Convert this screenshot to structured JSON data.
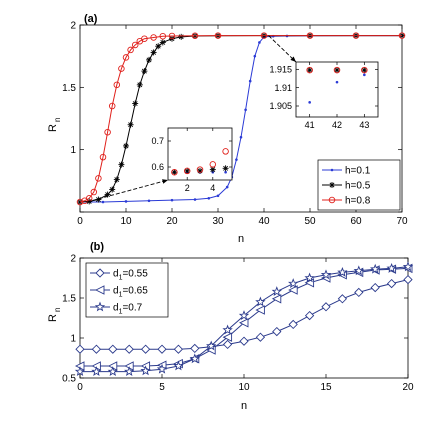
{
  "chart_data": [
    {
      "panel_label": "(a)",
      "type": "line",
      "xlabel": "n",
      "ylabel": "R",
      "ylabel_subscript": "n",
      "xlim": [
        0,
        70
      ],
      "ylim": [
        0.5,
        2.0
      ],
      "xticks": [
        0,
        10,
        20,
        30,
        40,
        50,
        60,
        70
      ],
      "yticks": [
        0.5,
        1,
        1.5,
        2
      ],
      "ytick_labels": [
        "",
        "1",
        "1.5",
        "2"
      ],
      "legend_position": "lower-right",
      "series": [
        {
          "name": "h=0.1",
          "color": "#2b3bd6",
          "marker": "dot",
          "x": [
            0,
            5,
            10,
            15,
            20,
            25,
            28,
            30,
            32,
            33,
            34,
            35,
            36,
            37,
            38,
            39,
            40,
            42,
            45,
            50,
            60,
            70
          ],
          "y": [
            0.58,
            0.58,
            0.585,
            0.59,
            0.595,
            0.6,
            0.61,
            0.63,
            0.7,
            0.78,
            0.92,
            1.1,
            1.32,
            1.55,
            1.75,
            1.86,
            1.905,
            1.91,
            1.912,
            1.914,
            1.915,
            1.915
          ]
        },
        {
          "name": "h=0.5",
          "color": "#000000",
          "marker": "asterisk",
          "x": [
            0,
            2,
            4,
            6,
            7,
            8,
            9,
            10,
            11,
            12,
            13,
            14,
            15,
            16,
            17,
            18,
            20,
            22,
            25,
            30,
            40,
            50,
            60,
            70
          ],
          "y": [
            0.58,
            0.585,
            0.6,
            0.64,
            0.68,
            0.76,
            0.88,
            1.03,
            1.2,
            1.37,
            1.52,
            1.63,
            1.72,
            1.78,
            1.83,
            1.86,
            1.89,
            1.905,
            1.912,
            1.914,
            1.915,
            1.915,
            1.915,
            1.915
          ]
        },
        {
          "name": "h=0.8",
          "color": "#e0211c",
          "marker": "circle",
          "x": [
            0,
            1,
            2,
            3,
            4,
            5,
            6,
            7,
            8,
            9,
            10,
            11,
            12,
            13,
            14,
            16,
            18,
            20,
            25,
            30,
            40,
            50,
            60,
            70
          ],
          "y": [
            0.58,
            0.59,
            0.61,
            0.66,
            0.77,
            0.94,
            1.14,
            1.35,
            1.52,
            1.65,
            1.74,
            1.8,
            1.84,
            1.87,
            1.89,
            1.9,
            1.91,
            1.912,
            1.914,
            1.915,
            1.915,
            1.915,
            1.915,
            1.915
          ]
        }
      ],
      "insets": [
        {
          "xlim": [
            0.5,
            5.5
          ],
          "ylim": [
            0.55,
            0.75
          ],
          "xticks": [
            2,
            4
          ],
          "yticks": [
            0.6,
            0.7
          ],
          "series": [
            {
              "name": "h=0.1",
              "color": "#2b3bd6",
              "marker": "dot",
              "x": [
                1,
                2,
                3,
                4,
                5
              ],
              "y": [
                0.58,
                0.58,
                0.58,
                0.58,
                0.58
              ]
            },
            {
              "name": "h=0.5",
              "color": "#000000",
              "marker": "asterisk",
              "x": [
                1,
                2,
                3,
                4,
                5
              ],
              "y": [
                0.58,
                0.585,
                0.585,
                0.59,
                0.595
              ]
            },
            {
              "name": "h=0.8",
              "color": "#e0211c",
              "marker": "circle",
              "x": [
                1,
                2,
                3,
                4,
                5
              ],
              "y": [
                0.58,
                0.585,
                0.59,
                0.61,
                0.66
              ]
            }
          ]
        },
        {
          "xlim": [
            40.5,
            43.5
          ],
          "ylim": [
            1.902,
            1.917
          ],
          "xticks": [
            41,
            42,
            43
          ],
          "yticks": [
            1.905,
            1.91,
            1.915
          ],
          "series": [
            {
              "name": "h=0.1",
              "color": "#2b3bd6",
              "marker": "dot",
              "x": [
                41,
                42,
                43
              ],
              "y": [
                1.906,
                1.9115,
                1.9135
              ]
            },
            {
              "name": "h=0.5",
              "color": "#000000",
              "marker": "asterisk",
              "x": [
                41,
                42,
                43
              ],
              "y": [
                1.9148,
                1.9148,
                1.9148
              ]
            },
            {
              "name": "h=0.8",
              "color": "#e0211c",
              "marker": "circle",
              "x": [
                41,
                42,
                43
              ],
              "y": [
                1.9148,
                1.9148,
                1.9148
              ]
            }
          ]
        }
      ]
    },
    {
      "panel_label": "(b)",
      "type": "line",
      "xlabel": "n",
      "ylabel": "R",
      "ylabel_subscript": "n",
      "xlim": [
        0,
        20
      ],
      "ylim": [
        0.5,
        2.0
      ],
      "xticks": [
        0,
        5,
        10,
        15,
        20
      ],
      "yticks": [
        0.5,
        1,
        1.5,
        2
      ],
      "ytick_labels": [
        "0.5",
        "1",
        "1.5",
        "2"
      ],
      "legend_position": "top-left",
      "color": "#2b3a8c",
      "series": [
        {
          "name_base": "d",
          "name_sub": "1",
          "name_value": "=0.55",
          "marker": "diamond",
          "x": [
            0,
            1,
            2,
            3,
            4,
            5,
            6,
            7,
            8,
            9,
            10,
            11,
            12,
            13,
            14,
            15,
            16,
            17,
            18,
            19,
            20
          ],
          "y": [
            0.86,
            0.86,
            0.86,
            0.86,
            0.86,
            0.86,
            0.86,
            0.87,
            0.89,
            0.92,
            0.96,
            1.01,
            1.08,
            1.17,
            1.28,
            1.39,
            1.49,
            1.57,
            1.63,
            1.68,
            1.73
          ]
        },
        {
          "name_base": "d",
          "name_sub": "1",
          "name_value": "=0.65",
          "marker": "triangle-left",
          "x": [
            0,
            1,
            2,
            3,
            4,
            5,
            6,
            7,
            8,
            9,
            10,
            11,
            12,
            13,
            14,
            15,
            16,
            17,
            18,
            19,
            20
          ],
          "y": [
            0.65,
            0.65,
            0.65,
            0.65,
            0.65,
            0.66,
            0.68,
            0.74,
            0.85,
            1.01,
            1.19,
            1.35,
            1.49,
            1.6,
            1.69,
            1.75,
            1.79,
            1.82,
            1.85,
            1.86,
            1.87
          ]
        },
        {
          "name_base": "d",
          "name_sub": "1",
          "name_value": "=0.7",
          "marker": "star",
          "x": [
            0,
            1,
            2,
            3,
            4,
            5,
            6,
            7,
            8,
            9,
            10,
            11,
            12,
            13,
            14,
            15,
            16,
            17,
            18,
            19,
            20
          ],
          "y": [
            0.58,
            0.58,
            0.58,
            0.58,
            0.59,
            0.61,
            0.65,
            0.74,
            0.9,
            1.1,
            1.28,
            1.45,
            1.58,
            1.68,
            1.75,
            1.79,
            1.82,
            1.84,
            1.86,
            1.87,
            1.89
          ]
        }
      ]
    }
  ]
}
